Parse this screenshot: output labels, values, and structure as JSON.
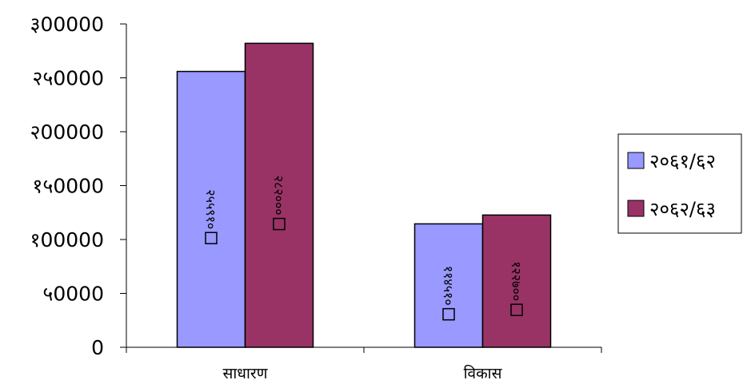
{
  "chart_data": {
    "type": "bar",
    "categories": [
      "साधारण",
      "विकास"
    ],
    "series": [
      {
        "name": "२०६१/६२",
        "color": "#9999FF",
        "values": [
          255910,
          114510
        ],
        "labels": [
          "२५५९१०",
          "११४५१०"
        ]
      },
      {
        "name": "२०६२/६३",
        "color": "#993366",
        "values": [
          282000,
          122700
        ],
        "labels": [
          "२८२०००",
          "१२२७००"
        ]
      }
    ],
    "yticks": [
      {
        "value": 0,
        "label": "0"
      },
      {
        "value": 50000,
        "label": "५0000"
      },
      {
        "value": 100000,
        "label": "१00000"
      },
      {
        "value": 150000,
        "label": "१५0000"
      },
      {
        "value": 200000,
        "label": "२00000"
      },
      {
        "value": 250000,
        "label": "२५0000"
      },
      {
        "value": 300000,
        "label": "३00000"
      }
    ],
    "ylim": [
      0,
      300000
    ],
    "grid": false,
    "legend": "right"
  }
}
